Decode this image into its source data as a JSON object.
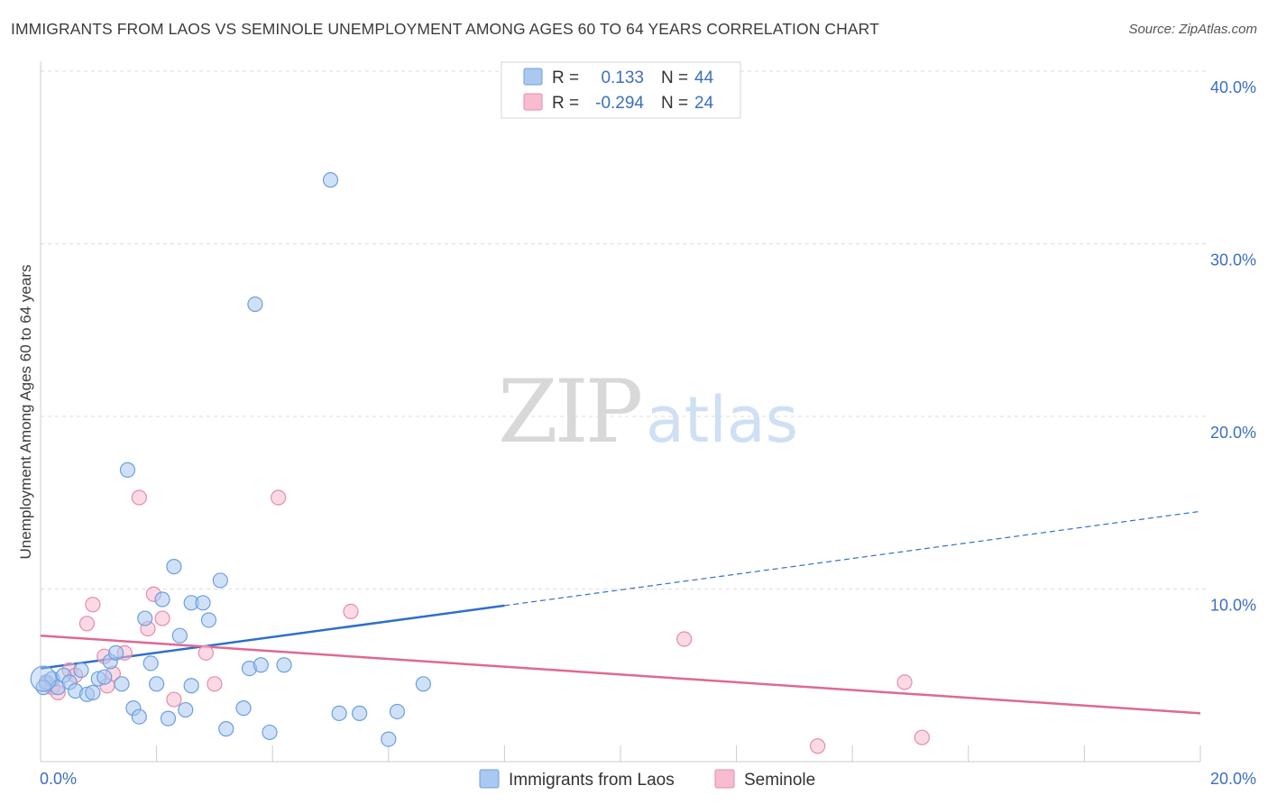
{
  "chart_data": {
    "type": "scatter",
    "title": "IMMIGRANTS FROM LAOS VS SEMINOLE UNEMPLOYMENT AMONG AGES 60 TO 64 YEARS CORRELATION CHART",
    "source": "Source: ZipAtlas.com",
    "xlabel": "",
    "ylabel": "Unemployment Among Ages 60 to 64 years",
    "xlim": [
      0,
      20
    ],
    "ylim": [
      0,
      40
    ],
    "x_tick_labels": [
      "0.0%",
      "20.0%"
    ],
    "y_tick_values": [
      10,
      20,
      30,
      40
    ],
    "y_tick_labels": [
      "10.0%",
      "20.0%",
      "30.0%",
      "40.0%"
    ],
    "grid": true,
    "legend_position": "top-center",
    "watermark": "ZIPatlas",
    "colors": {
      "laos": "#aac8f0",
      "laos_stroke": "#6b9fe0",
      "laos_line": "#2f6fcb",
      "seminole": "#f7bcd0",
      "seminole_stroke": "#e98aaa",
      "seminole_line": "#e06893",
      "axis_label": "#3c6fc0"
    },
    "stats_legend": [
      {
        "r_label": "R = ",
        "r_value": "0.133",
        "n_label": "N = ",
        "n_value": "44"
      },
      {
        "r_label": "R = ",
        "r_value": "-0.294",
        "n_label": "N = ",
        "n_value": "24"
      }
    ],
    "series": [
      {
        "name": "Immigrants from Laos",
        "trend": {
          "x0": 0,
          "y0": 5.4,
          "x_solid_end": 8,
          "x1": 20,
          "y1": 14.5
        },
        "points": [
          [
            0.1,
            4.6
          ],
          [
            0.2,
            4.8
          ],
          [
            0.3,
            4.3
          ],
          [
            0.4,
            5.0
          ],
          [
            0.5,
            4.6
          ],
          [
            0.6,
            4.1
          ],
          [
            0.7,
            5.3
          ],
          [
            0.8,
            3.9
          ],
          [
            0.9,
            4.0
          ],
          [
            1.0,
            4.8
          ],
          [
            1.1,
            4.9
          ],
          [
            1.2,
            5.8
          ],
          [
            1.3,
            6.3
          ],
          [
            1.4,
            4.5
          ],
          [
            1.5,
            16.9
          ],
          [
            1.6,
            3.1
          ],
          [
            1.7,
            2.6
          ],
          [
            1.8,
            8.3
          ],
          [
            1.9,
            5.7
          ],
          [
            2.0,
            4.5
          ],
          [
            2.1,
            9.4
          ],
          [
            2.2,
            2.5
          ],
          [
            2.3,
            11.3
          ],
          [
            2.4,
            7.3
          ],
          [
            2.5,
            3.0
          ],
          [
            2.6,
            4.4
          ],
          [
            2.6,
            9.2
          ],
          [
            2.8,
            9.2
          ],
          [
            2.9,
            8.2
          ],
          [
            3.1,
            10.5
          ],
          [
            3.2,
            1.9
          ],
          [
            3.5,
            3.1
          ],
          [
            3.6,
            5.4
          ],
          [
            3.7,
            26.5
          ],
          [
            3.8,
            5.6
          ],
          [
            3.95,
            1.7
          ],
          [
            4.2,
            5.6
          ],
          [
            5.0,
            33.7
          ],
          [
            5.15,
            2.8
          ],
          [
            5.5,
            2.8
          ],
          [
            6.0,
            1.3
          ],
          [
            6.15,
            2.9
          ],
          [
            6.6,
            4.5
          ],
          [
            0.05,
            4.3
          ]
        ]
      },
      {
        "name": "Seminole",
        "trend": {
          "x0": 0,
          "y0": 7.3,
          "x1": 20,
          "y1": 2.8
        },
        "points": [
          [
            0.1,
            4.5
          ],
          [
            0.2,
            4.3
          ],
          [
            0.3,
            4.0
          ],
          [
            0.5,
            5.3
          ],
          [
            0.6,
            5.0
          ],
          [
            0.8,
            8.0
          ],
          [
            0.9,
            9.1
          ],
          [
            1.1,
            6.1
          ],
          [
            1.15,
            4.4
          ],
          [
            1.25,
            5.1
          ],
          [
            1.45,
            6.3
          ],
          [
            1.7,
            15.3
          ],
          [
            1.85,
            7.7
          ],
          [
            1.95,
            9.7
          ],
          [
            2.1,
            8.3
          ],
          [
            2.3,
            3.6
          ],
          [
            2.85,
            6.3
          ],
          [
            3.0,
            4.5
          ],
          [
            4.1,
            15.3
          ],
          [
            5.35,
            8.7
          ],
          [
            11.1,
            7.1
          ],
          [
            13.4,
            0.9
          ],
          [
            14.9,
            4.6
          ],
          [
            15.2,
            1.4
          ]
        ]
      }
    ]
  }
}
